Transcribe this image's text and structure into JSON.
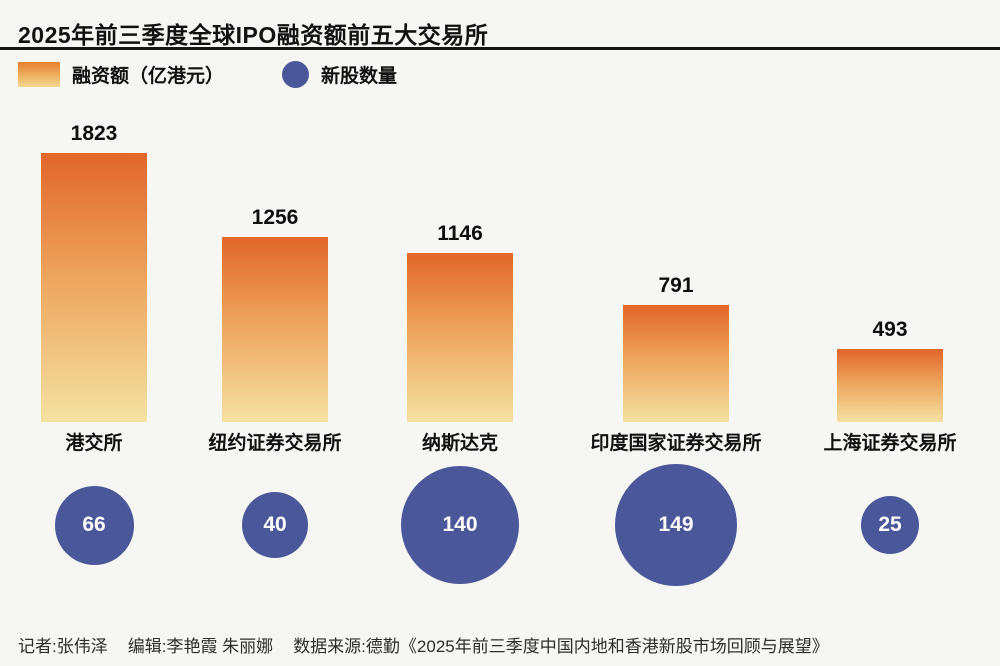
{
  "page": {
    "title": "2025年前三季度全球IPO融资额前五大交易所"
  },
  "legend": {
    "bar_label": "融资额（亿港元）",
    "circle_label": "新股数量"
  },
  "colors": {
    "background": "#f6f6f4",
    "bar_gradient_top": "#e1662a",
    "bar_gradient_bottom": "#f4e2a2",
    "circle_fill": "#4a589b",
    "circle_text": "#ffffff",
    "title_rule": "#161616"
  },
  "chart_data": {
    "type": "bar",
    "title": "2025年前三季度全球IPO融资额前五大交易所",
    "categories": [
      "港交所",
      "纽约证券交易所",
      "纳斯达克",
      "印度国家证券交易所",
      "上海证券交易所"
    ],
    "series": [
      {
        "name": "融资额（亿港元）",
        "type": "bar",
        "values": [
          1823,
          1256,
          1146,
          791,
          493
        ]
      },
      {
        "name": "新股数量",
        "type": "bubble",
        "values": [
          66,
          40,
          140,
          149,
          25
        ]
      }
    ],
    "ylim": [
      0,
      1900
    ],
    "grid": false,
    "legend_position": "top-left",
    "value_labels_shown": true
  },
  "footer": {
    "segments": [
      "记者:张伟泽",
      "编辑:李艳霞 朱丽娜",
      "数据来源:德勤《2025年前三季度中国内地和香港新股市场回顾与展望》"
    ]
  }
}
